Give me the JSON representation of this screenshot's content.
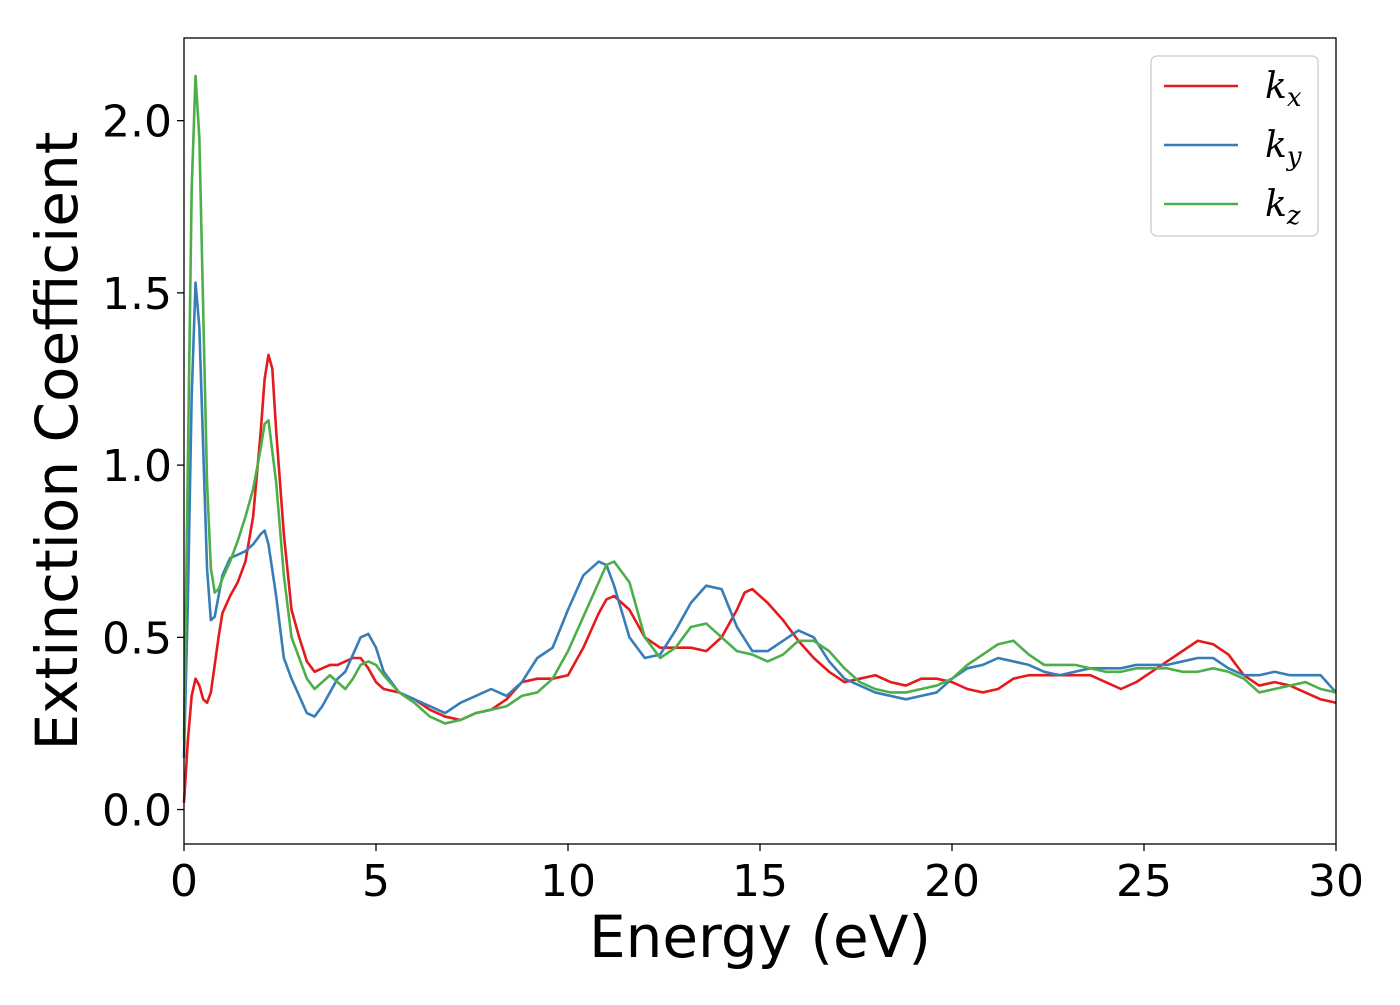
{
  "chart_data": {
    "type": "line",
    "title": "",
    "xlabel": "Energy (eV)",
    "ylabel": "Extinction Coefficient",
    "xlim": [
      0,
      30
    ],
    "ylim": [
      -0.1,
      2.24
    ],
    "xticks": [
      0,
      5,
      10,
      15,
      20,
      25,
      30
    ],
    "xtick_labels": [
      "0",
      "5",
      "10",
      "15",
      "20",
      "25",
      "30"
    ],
    "yticks": [
      0.0,
      0.5,
      1.0,
      1.5,
      2.0
    ],
    "ytick_labels": [
      "0.0",
      "0.5",
      "1.0",
      "1.5",
      "2.0"
    ],
    "grid": false,
    "legend_position": "top-right",
    "series": [
      {
        "name": "k",
        "subscript": "x",
        "color": "#e41a1c",
        "x": [
          0,
          0.1,
          0.2,
          0.3,
          0.4,
          0.5,
          0.6,
          0.7,
          0.8,
          0.9,
          1.0,
          1.2,
          1.4,
          1.6,
          1.8,
          2.0,
          2.1,
          2.2,
          2.3,
          2.4,
          2.6,
          2.8,
          3.0,
          3.2,
          3.4,
          3.6,
          3.8,
          4.0,
          4.2,
          4.4,
          4.6,
          4.8,
          5.0,
          5.2,
          5.6,
          6.0,
          6.4,
          6.8,
          7.2,
          7.6,
          8.0,
          8.4,
          8.8,
          9.2,
          9.6,
          10.0,
          10.4,
          10.8,
          11.0,
          11.2,
          11.6,
          12.0,
          12.4,
          12.8,
          13.2,
          13.6,
          14.0,
          14.4,
          14.6,
          14.8,
          15.2,
          15.6,
          16.0,
          16.4,
          16.8,
          17.2,
          17.6,
          18.0,
          18.4,
          18.8,
          19.2,
          19.6,
          20.0,
          20.4,
          20.8,
          21.2,
          21.6,
          22.0,
          22.4,
          22.8,
          23.2,
          23.6,
          24.0,
          24.4,
          24.8,
          25.2,
          25.6,
          26.0,
          26.4,
          26.8,
          27.2,
          27.6,
          28.0,
          28.4,
          28.8,
          29.2,
          29.6,
          30.0
        ],
        "y": [
          0.02,
          0.2,
          0.33,
          0.38,
          0.36,
          0.32,
          0.31,
          0.34,
          0.42,
          0.5,
          0.57,
          0.62,
          0.66,
          0.72,
          0.85,
          1.1,
          1.25,
          1.32,
          1.28,
          1.1,
          0.8,
          0.58,
          0.5,
          0.43,
          0.4,
          0.41,
          0.42,
          0.42,
          0.43,
          0.44,
          0.44,
          0.41,
          0.37,
          0.35,
          0.34,
          0.32,
          0.29,
          0.27,
          0.26,
          0.28,
          0.29,
          0.32,
          0.37,
          0.38,
          0.38,
          0.39,
          0.47,
          0.57,
          0.61,
          0.62,
          0.58,
          0.5,
          0.47,
          0.47,
          0.47,
          0.46,
          0.5,
          0.58,
          0.63,
          0.64,
          0.6,
          0.55,
          0.49,
          0.44,
          0.4,
          0.37,
          0.38,
          0.39,
          0.37,
          0.36,
          0.38,
          0.38,
          0.37,
          0.35,
          0.34,
          0.35,
          0.38,
          0.39,
          0.39,
          0.39,
          0.39,
          0.39,
          0.37,
          0.35,
          0.37,
          0.4,
          0.43,
          0.46,
          0.49,
          0.48,
          0.45,
          0.39,
          0.36,
          0.37,
          0.36,
          0.34,
          0.32,
          0.31
        ]
      },
      {
        "name": "k",
        "subscript": "y",
        "color": "#377eb8",
        "x": [
          0,
          0.1,
          0.2,
          0.3,
          0.4,
          0.5,
          0.6,
          0.7,
          0.8,
          0.9,
          1.0,
          1.2,
          1.4,
          1.6,
          1.8,
          2.0,
          2.1,
          2.2,
          2.4,
          2.6,
          2.8,
          3.0,
          3.2,
          3.4,
          3.6,
          3.8,
          4.0,
          4.2,
          4.4,
          4.6,
          4.8,
          5.0,
          5.2,
          5.6,
          6.0,
          6.4,
          6.8,
          7.2,
          7.6,
          8.0,
          8.4,
          8.8,
          9.2,
          9.6,
          10.0,
          10.4,
          10.8,
          11.0,
          11.2,
          11.6,
          12.0,
          12.4,
          12.8,
          13.2,
          13.6,
          14.0,
          14.4,
          14.8,
          15.2,
          15.6,
          16.0,
          16.4,
          16.8,
          17.2,
          17.6,
          18.0,
          18.4,
          18.8,
          19.2,
          19.6,
          20.0,
          20.4,
          20.8,
          21.2,
          21.6,
          22.0,
          22.4,
          22.8,
          23.2,
          23.6,
          24.0,
          24.4,
          24.8,
          25.2,
          25.6,
          26.0,
          26.4,
          26.8,
          27.2,
          27.6,
          28.0,
          28.4,
          28.8,
          29.2,
          29.6,
          30.0
        ],
        "y": [
          0.15,
          0.6,
          1.2,
          1.53,
          1.4,
          1.05,
          0.7,
          0.55,
          0.56,
          0.62,
          0.68,
          0.73,
          0.74,
          0.75,
          0.77,
          0.8,
          0.81,
          0.77,
          0.62,
          0.44,
          0.38,
          0.33,
          0.28,
          0.27,
          0.3,
          0.34,
          0.38,
          0.4,
          0.45,
          0.5,
          0.51,
          0.47,
          0.4,
          0.34,
          0.32,
          0.3,
          0.28,
          0.31,
          0.33,
          0.35,
          0.33,
          0.37,
          0.44,
          0.47,
          0.58,
          0.68,
          0.72,
          0.71,
          0.65,
          0.5,
          0.44,
          0.45,
          0.52,
          0.6,
          0.65,
          0.64,
          0.53,
          0.46,
          0.46,
          0.49,
          0.52,
          0.5,
          0.43,
          0.38,
          0.36,
          0.34,
          0.33,
          0.32,
          0.33,
          0.34,
          0.38,
          0.41,
          0.42,
          0.44,
          0.43,
          0.42,
          0.4,
          0.39,
          0.4,
          0.41,
          0.41,
          0.41,
          0.42,
          0.42,
          0.42,
          0.43,
          0.44,
          0.44,
          0.41,
          0.39,
          0.39,
          0.4,
          0.39,
          0.39,
          0.39,
          0.34
        ]
      },
      {
        "name": "k",
        "subscript": "z",
        "color": "#4daf4a",
        "x": [
          0,
          0.1,
          0.2,
          0.3,
          0.4,
          0.5,
          0.6,
          0.7,
          0.8,
          0.9,
          1.0,
          1.2,
          1.4,
          1.6,
          1.8,
          2.0,
          2.1,
          2.2,
          2.4,
          2.6,
          2.8,
          3.0,
          3.2,
          3.4,
          3.6,
          3.8,
          4.0,
          4.2,
          4.4,
          4.6,
          4.8,
          5.0,
          5.2,
          5.6,
          6.0,
          6.4,
          6.8,
          7.2,
          7.6,
          8.0,
          8.4,
          8.8,
          9.2,
          9.6,
          10.0,
          10.4,
          10.8,
          11.0,
          11.2,
          11.6,
          12.0,
          12.4,
          12.8,
          13.2,
          13.6,
          14.0,
          14.4,
          14.8,
          15.2,
          15.6,
          16.0,
          16.4,
          16.8,
          17.2,
          17.6,
          18.0,
          18.4,
          18.8,
          19.2,
          19.6,
          20.0,
          20.4,
          20.8,
          21.2,
          21.6,
          22.0,
          22.4,
          22.8,
          23.2,
          23.6,
          24.0,
          24.4,
          24.8,
          25.2,
          25.6,
          26.0,
          26.4,
          26.8,
          27.2,
          27.6,
          28.0,
          28.4,
          28.8,
          29.2,
          29.6,
          30.0
        ],
        "y": [
          0.2,
          1.0,
          1.8,
          2.13,
          1.95,
          1.45,
          0.95,
          0.7,
          0.63,
          0.64,
          0.67,
          0.72,
          0.78,
          0.85,
          0.93,
          1.05,
          1.12,
          1.13,
          0.95,
          0.68,
          0.5,
          0.44,
          0.38,
          0.35,
          0.37,
          0.39,
          0.37,
          0.35,
          0.38,
          0.42,
          0.43,
          0.42,
          0.39,
          0.34,
          0.31,
          0.27,
          0.25,
          0.26,
          0.28,
          0.29,
          0.3,
          0.33,
          0.34,
          0.38,
          0.46,
          0.56,
          0.66,
          0.71,
          0.72,
          0.66,
          0.5,
          0.44,
          0.47,
          0.53,
          0.54,
          0.5,
          0.46,
          0.45,
          0.43,
          0.45,
          0.49,
          0.49,
          0.46,
          0.41,
          0.37,
          0.35,
          0.34,
          0.34,
          0.35,
          0.36,
          0.38,
          0.42,
          0.45,
          0.48,
          0.49,
          0.45,
          0.42,
          0.42,
          0.42,
          0.41,
          0.4,
          0.4,
          0.41,
          0.41,
          0.41,
          0.4,
          0.4,
          0.41,
          0.4,
          0.38,
          0.34,
          0.35,
          0.36,
          0.37,
          0.35,
          0.34
        ]
      }
    ]
  }
}
